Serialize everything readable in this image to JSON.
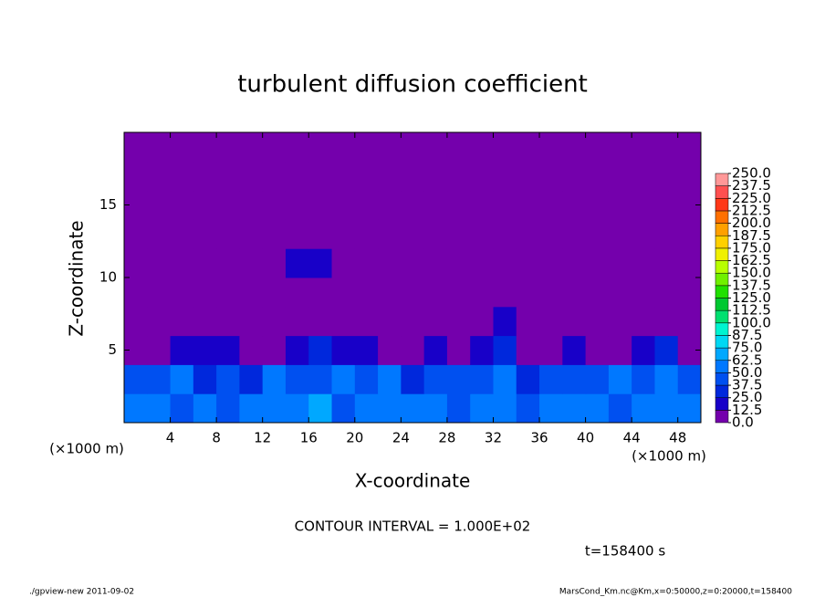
{
  "chart_data": {
    "type": "heatmap",
    "title": "turbulent diffusion coefficient",
    "ylabel": "Z-coordinate",
    "xlabel": "X-coordinate",
    "xunit": "(×1000 m)",
    "yunit": "(×1000 m)",
    "contour_note": "CONTOUR INTERVAL = 1.000E+02",
    "time_note": "t=158400 s",
    "footer_left": "./gpview-new  2011-09-02",
    "footer_right": "MarsCond_Km.nc@Km,x=0:50000,z=0:20000,t=158400",
    "xlim": [
      0,
      50
    ],
    "ylim": [
      0,
      20
    ],
    "xticks": [
      4,
      8,
      12,
      16,
      20,
      24,
      28,
      32,
      36,
      40,
      44,
      48
    ],
    "yticks": [
      5,
      10,
      15
    ],
    "levels": [
      {
        "value": 0,
        "label": "0.0"
      },
      {
        "value": 12.5,
        "label": "12.5"
      },
      {
        "value": 25,
        "label": "25.0"
      },
      {
        "value": 37.5,
        "label": "37.5"
      },
      {
        "value": 50,
        "label": "50.0"
      },
      {
        "value": 62.5,
        "label": "62.5"
      },
      {
        "value": 75,
        "label": "75.0"
      },
      {
        "value": 87.5,
        "label": "87.5"
      },
      {
        "value": 100,
        "label": "100.0"
      },
      {
        "value": 112.5,
        "label": "112.5"
      },
      {
        "value": 125,
        "label": "125.0"
      },
      {
        "value": 137.5,
        "label": "137.5"
      },
      {
        "value": 150,
        "label": "150.0"
      },
      {
        "value": 162.5,
        "label": "162.5"
      },
      {
        "value": 175,
        "label": "175.0"
      },
      {
        "value": 187.5,
        "label": "187.5"
      },
      {
        "value": 200,
        "label": "200.0"
      },
      {
        "value": 212.5,
        "label": "212.5"
      },
      {
        "value": 225,
        "label": "225.0"
      },
      {
        "value": 237.5,
        "label": "237.5"
      },
      {
        "value": 250,
        "label": "250.0"
      }
    ],
    "colors": [
      "#7400ac",
      "#1800c8",
      "#0028dc",
      "#0050f0",
      "#0078ff",
      "#00a8ff",
      "#00d8f4",
      "#00f4d0",
      "#00e070",
      "#00c830",
      "#20e000",
      "#70f000",
      "#b8ff00",
      "#f0f000",
      "#ffd000",
      "#ffa000",
      "#ff7000",
      "#ff3818",
      "#ff5050",
      "#ff9898"
    ],
    "values": [
      [
        55,
        60,
        45,
        50,
        40,
        60,
        55,
        50,
        70,
        45,
        55,
        60,
        50,
        55,
        45,
        60,
        55,
        40,
        50,
        60,
        55,
        45,
        60,
        50,
        55
      ],
      [
        40,
        45,
        50,
        35,
        40,
        30,
        50,
        45,
        40,
        55,
        45,
        50,
        35,
        40,
        45,
        40,
        50,
        35,
        45,
        40,
        45,
        50,
        45,
        60,
        40
      ],
      [
        5,
        10,
        15,
        20,
        15,
        5,
        10,
        15,
        25,
        20,
        15,
        10,
        5,
        15,
        10,
        20,
        30,
        5,
        10,
        15,
        5,
        10,
        20,
        30,
        10
      ],
      [
        0,
        0,
        0,
        5,
        0,
        0,
        0,
        0,
        0,
        0,
        0,
        0,
        5,
        5,
        0,
        5,
        15,
        0,
        0,
        5,
        5,
        10,
        0,
        0,
        0
      ],
      [
        0,
        0,
        0,
        0,
        0,
        0,
        0,
        0,
        0,
        0,
        0,
        0,
        0,
        0,
        0,
        0,
        0,
        0,
        0,
        0,
        0,
        0,
        0,
        0,
        0
      ],
      [
        0,
        0,
        0,
        0,
        0,
        0,
        0,
        20,
        15,
        0,
        0,
        0,
        0,
        0,
        0,
        0,
        0,
        0,
        0,
        0,
        0,
        0,
        0,
        0,
        0
      ],
      [
        0,
        0,
        0,
        0,
        0,
        0,
        0,
        0,
        0,
        0,
        0,
        0,
        0,
        0,
        0,
        0,
        0,
        0,
        0,
        0,
        0,
        0,
        0,
        0,
        0
      ],
      [
        0,
        0,
        0,
        0,
        0,
        0,
        0,
        0,
        0,
        0,
        0,
        0,
        0,
        0,
        0,
        0,
        0,
        0,
        0,
        0,
        0,
        0,
        0,
        0,
        0
      ],
      [
        0,
        0,
        0,
        0,
        0,
        0,
        0,
        0,
        0,
        0,
        0,
        0,
        0,
        0,
        0,
        0,
        0,
        0,
        0,
        0,
        0,
        0,
        0,
        0,
        0
      ],
      [
        0,
        0,
        0,
        0,
        0,
        0,
        0,
        0,
        0,
        0,
        0,
        0,
        0,
        0,
        0,
        0,
        0,
        0,
        0,
        0,
        0,
        0,
        0,
        0,
        0
      ]
    ]
  }
}
